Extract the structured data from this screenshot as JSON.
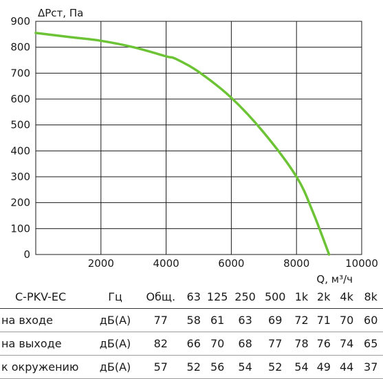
{
  "chart_data": {
    "type": "line",
    "ylabel": "ΔPст, Па",
    "xlabel": "Q, м³/ч",
    "xlim": [
      0,
      10000
    ],
    "ylim": [
      0,
      900
    ],
    "grid": true,
    "x_ticks": [
      "2000",
      "4000",
      "6000",
      "8000",
      "10000"
    ],
    "y_ticks": [
      "0",
      "100",
      "200",
      "300",
      "400",
      "500",
      "600",
      "700",
      "800",
      "900"
    ],
    "series": [
      {
        "color": "#6cc335",
        "points": [
          [
            0,
            855
          ],
          [
            1000,
            840
          ],
          [
            2000,
            825
          ],
          [
            3000,
            800
          ],
          [
            4000,
            765
          ],
          [
            4300,
            755
          ],
          [
            5000,
            705
          ],
          [
            6000,
            605
          ],
          [
            7000,
            470
          ],
          [
            8000,
            300
          ],
          [
            8500,
            165
          ],
          [
            9000,
            0
          ]
        ]
      }
    ]
  },
  "noise_table": {
    "headers": [
      "C-PKV-EC",
      "Гц",
      "Общ.",
      "63",
      "125",
      "250",
      "500",
      "1k",
      "2k",
      "4k",
      "8k"
    ],
    "rows": [
      {
        "label": "на входе",
        "unit": "дБ(A)",
        "values": [
          "77",
          "58",
          "61",
          "63",
          "69",
          "72",
          "71",
          "70",
          "60"
        ]
      },
      {
        "label": "на выходе",
        "unit": "дБ(A)",
        "values": [
          "82",
          "66",
          "70",
          "68",
          "77",
          "78",
          "76",
          "74",
          "65"
        ]
      },
      {
        "label": "к окружению",
        "unit": "дБ(A)",
        "values": [
          "57",
          "52",
          "56",
          "54",
          "52",
          "54",
          "49",
          "44",
          "37"
        ]
      }
    ]
  }
}
